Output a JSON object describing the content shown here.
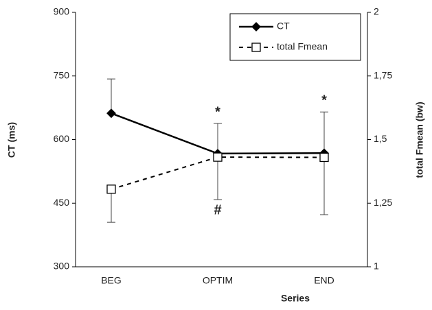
{
  "chart_data": {
    "type": "line",
    "categories": [
      "BEG",
      "OPTIM",
      "END"
    ],
    "xlabel": "Series",
    "ylabel": "CT (ms)",
    "y2label": "total Fmean (bw)",
    "ylim": [
      300,
      900
    ],
    "yticks": [
      300,
      450,
      600,
      750,
      900
    ],
    "y2lim": [
      1,
      2
    ],
    "y2ticks": [
      1,
      {
        "value": 1.25,
        "label": "1,25"
      },
      {
        "value": 1.5,
        "label": "1,5"
      },
      {
        "value": 1.75,
        "label": "1,75"
      },
      2
    ],
    "legend": "top-right",
    "series": [
      {
        "name": "CT",
        "color": "#000000",
        "marker": "diamond",
        "dash": false,
        "error_direction": "up",
        "values": [
          662,
          567,
          568
        ],
        "errors": [
          81,
          71,
          97
        ]
      },
      {
        "name": "total Fmean",
        "color": "#000000",
        "marker": "square",
        "dash": true,
        "error_direction": "down",
        "axis": "y2",
        "values": [
          1.305,
          1.431,
          1.43
        ],
        "errors": [
          0.13,
          0.167,
          0.225
        ]
      }
    ],
    "annotations": [
      {
        "text": "*",
        "category": 1,
        "series": 0
      },
      {
        "text": "*",
        "category": 2,
        "series": 0
      },
      {
        "text": "#",
        "category": 1,
        "series": 1
      }
    ]
  }
}
